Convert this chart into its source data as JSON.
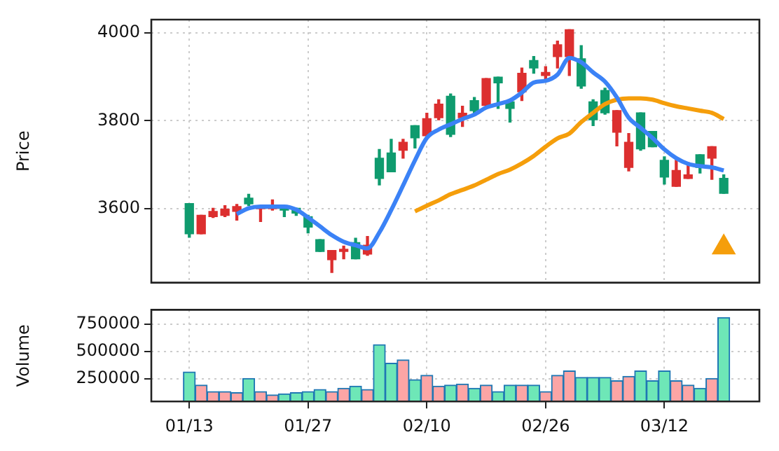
{
  "chart_data": [
    {
      "type": "candlestick",
      "ylabel": "Price",
      "tick_labels": "y",
      "grid": true,
      "ylim": [
        3432,
        4030
      ],
      "yticks": [
        3600,
        3800,
        4000
      ],
      "categories": [
        null,
        null,
        null,
        null,
        null,
        null,
        null,
        null,
        null,
        null,
        null,
        null,
        null,
        null,
        null,
        null,
        null,
        null,
        null,
        null,
        null,
        null,
        null,
        null,
        null,
        null,
        null,
        null,
        null,
        null,
        null,
        null,
        null,
        null,
        null,
        null,
        null,
        null,
        null,
        null,
        null,
        null,
        null,
        null,
        null,
        null
      ],
      "ohlc": [
        [
          3543,
          3612,
          3535,
          3612
        ],
        [
          3585,
          3585,
          3543,
          3543
        ],
        [
          3594,
          3601,
          3580,
          3582
        ],
        [
          3599,
          3607,
          3582,
          3585
        ],
        [
          3605,
          3610,
          3574,
          3594
        ],
        [
          3611,
          3633,
          3607,
          3624
        ],
        [
          3605,
          3607,
          3571,
          3600
        ],
        [
          3607,
          3620,
          3597,
          3600
        ],
        [
          3597,
          3607,
          3582,
          3607
        ],
        [
          3590,
          3601,
          3585,
          3601
        ],
        [
          3558,
          3585,
          3545,
          3582
        ],
        [
          3503,
          3530,
          3503,
          3530
        ],
        [
          3505,
          3505,
          3455,
          3484
        ],
        [
          3508,
          3515,
          3486,
          3503
        ],
        [
          3486,
          3533,
          3486,
          3523
        ],
        [
          3517,
          3537,
          3494,
          3497
        ],
        [
          3669,
          3735,
          3654,
          3715
        ],
        [
          3684,
          3758,
          3684,
          3727
        ],
        [
          3751,
          3758,
          3715,
          3733
        ],
        [
          3761,
          3789,
          3738,
          3789
        ],
        [
          3805,
          3817,
          3766,
          3766
        ],
        [
          3838,
          3848,
          3802,
          3807
        ],
        [
          3769,
          3861,
          3764,
          3856
        ],
        [
          3817,
          3833,
          3787,
          3807
        ],
        [
          3823,
          3853,
          3817,
          3846
        ],
        [
          3896,
          3896,
          3833,
          3835
        ],
        [
          3886,
          3899,
          3828,
          3899
        ],
        [
          3828,
          3843,
          3797,
          3843
        ],
        [
          3908,
          3920,
          3846,
          3866
        ],
        [
          3920,
          3946,
          3908,
          3937
        ],
        [
          3910,
          3923,
          3894,
          3903
        ],
        [
          3973,
          3981,
          3920,
          3946
        ],
        [
          4007,
          4007,
          3903,
          3946
        ],
        [
          3879,
          3971,
          3874,
          3941
        ],
        [
          3802,
          3848,
          3789,
          3843
        ],
        [
          3818,
          3874,
          3815,
          3869
        ],
        [
          3823,
          3823,
          3743,
          3774
        ],
        [
          3751,
          3771,
          3686,
          3694
        ],
        [
          3736,
          3818,
          3733,
          3818
        ],
        [
          3741,
          3776,
          3741,
          3776
        ],
        [
          3672,
          3718,
          3656,
          3710
        ],
        [
          3687,
          3710,
          3651,
          3651
        ],
        [
          3677,
          3705,
          3669,
          3669
        ],
        [
          3694,
          3723,
          3681,
          3723
        ],
        [
          3741,
          3741,
          3667,
          3715
        ],
        [
          3635,
          3677,
          3635,
          3669
        ]
      ],
      "colors": [
        "#0f9b6e",
        "#dc2f2f",
        "#dc2f2f",
        "#dc2f2f",
        "#dc2f2f",
        "#0f9b6e",
        "#dc2f2f",
        "#dc2f2f",
        "#0f9b6e",
        "#0f9b6e",
        "#0f9b6e",
        "#0f9b6e",
        "#dc2f2f",
        "#dc2f2f",
        "#0f9b6e",
        "#dc2f2f",
        "#0f9b6e",
        "#0f9b6e",
        "#dc2f2f",
        "#0f9b6e",
        "#dc2f2f",
        "#dc2f2f",
        "#0f9b6e",
        "#dc2f2f",
        "#0f9b6e",
        "#dc2f2f",
        "#0f9b6e",
        "#0f9b6e",
        "#dc2f2f",
        "#0f9b6e",
        "#dc2f2f",
        "#dc2f2f",
        "#dc2f2f",
        "#0f9b6e",
        "#0f9b6e",
        "#0f9b6e",
        "#dc2f2f",
        "#dc2f2f",
        "#0f9b6e",
        "#0f9b6e",
        "#0f9b6e",
        "#dc2f2f",
        "#dc2f2f",
        "#0f9b6e",
        "#dc2f2f",
        "#0f9b6e"
      ],
      "series": [
        {
          "type": "line",
          "color": "#3b82f6",
          "values": [
            null,
            null,
            null,
            null,
            3588,
            3601,
            3605,
            3605,
            3605,
            3598,
            3580,
            3560,
            3540,
            3525,
            3517,
            3510,
            3546,
            3597,
            3653,
            3710,
            3761,
            3780,
            3792,
            3804,
            3814,
            3830,
            3838,
            3846,
            3864,
            3887,
            3891,
            3905,
            3943,
            3933,
            3910,
            3889,
            3853,
            3807,
            3784,
            3761,
            3735,
            3715,
            3702,
            3697,
            3694,
            3687
          ]
        },
        {
          "type": "line",
          "color": "#f59e0b",
          "values": [
            null,
            null,
            null,
            null,
            null,
            null,
            null,
            null,
            null,
            null,
            null,
            null,
            null,
            null,
            null,
            null,
            null,
            null,
            null,
            3594,
            3607,
            3619,
            3633,
            3643,
            3653,
            3666,
            3679,
            3689,
            3703,
            3720,
            3741,
            3760,
            3771,
            3797,
            3818,
            3838,
            3848,
            3851,
            3851,
            3848,
            3840,
            3833,
            3828,
            3823,
            3818,
            3804
          ]
        },
        {
          "type": "scatter",
          "color": "#f59e0b",
          "marker": "triangle",
          "values": [
            null,
            null,
            null,
            null,
            null,
            null,
            null,
            null,
            null,
            null,
            null,
            null,
            null,
            null,
            null,
            null,
            null,
            null,
            null,
            null,
            null,
            null,
            null,
            null,
            null,
            null,
            null,
            null,
            null,
            null,
            null,
            null,
            null,
            null,
            null,
            null,
            null,
            null,
            null,
            null,
            null,
            null,
            null,
            null,
            null,
            3512
          ]
        }
      ]
    },
    {
      "type": "bar",
      "ylabel": "Volume",
      "grid": true,
      "ylim": [
        40000,
        880000
      ],
      "yticks": [
        250000,
        500000,
        750000
      ],
      "categories": [
        "01/13",
        null,
        null,
        null,
        null,
        null,
        null,
        null,
        null,
        null,
        "01/27",
        null,
        null,
        null,
        null,
        null,
        null,
        null,
        null,
        null,
        "02/10",
        null,
        null,
        null,
        null,
        null,
        null,
        null,
        null,
        null,
        "02/26",
        null,
        null,
        null,
        null,
        null,
        null,
        null,
        null,
        null,
        "03/12",
        null,
        null,
        null,
        null,
        null
      ],
      "values": [
        310000,
        190000,
        130000,
        130000,
        120000,
        250000,
        130000,
        100000,
        110000,
        120000,
        130000,
        150000,
        130000,
        160000,
        180000,
        150000,
        560000,
        390000,
        420000,
        240000,
        280000,
        180000,
        190000,
        200000,
        160000,
        190000,
        130000,
        190000,
        190000,
        190000,
        130000,
        280000,
        320000,
        260000,
        260000,
        260000,
        230000,
        270000,
        320000,
        230000,
        320000,
        230000,
        190000,
        160000,
        250000,
        810000
      ],
      "colors": [
        "#6ee7b7",
        "#fca5a5",
        "#fca5a5",
        "#fca5a5",
        "#fca5a5",
        "#6ee7b7",
        "#fca5a5",
        "#fca5a5",
        "#6ee7b7",
        "#6ee7b7",
        "#6ee7b7",
        "#6ee7b7",
        "#fca5a5",
        "#fca5a5",
        "#6ee7b7",
        "#fca5a5",
        "#6ee7b7",
        "#6ee7b7",
        "#fca5a5",
        "#6ee7b7",
        "#fca5a5",
        "#fca5a5",
        "#6ee7b7",
        "#fca5a5",
        "#6ee7b7",
        "#fca5a5",
        "#6ee7b7",
        "#6ee7b7",
        "#fca5a5",
        "#6ee7b7",
        "#fca5a5",
        "#fca5a5",
        "#fca5a5",
        "#6ee7b7",
        "#6ee7b7",
        "#6ee7b7",
        "#fca5a5",
        "#fca5a5",
        "#6ee7b7",
        "#6ee7b7",
        "#6ee7b7",
        "#fca5a5",
        "#fca5a5",
        "#6ee7b7",
        "#fca5a5",
        "#6ee7b7"
      ]
    }
  ]
}
